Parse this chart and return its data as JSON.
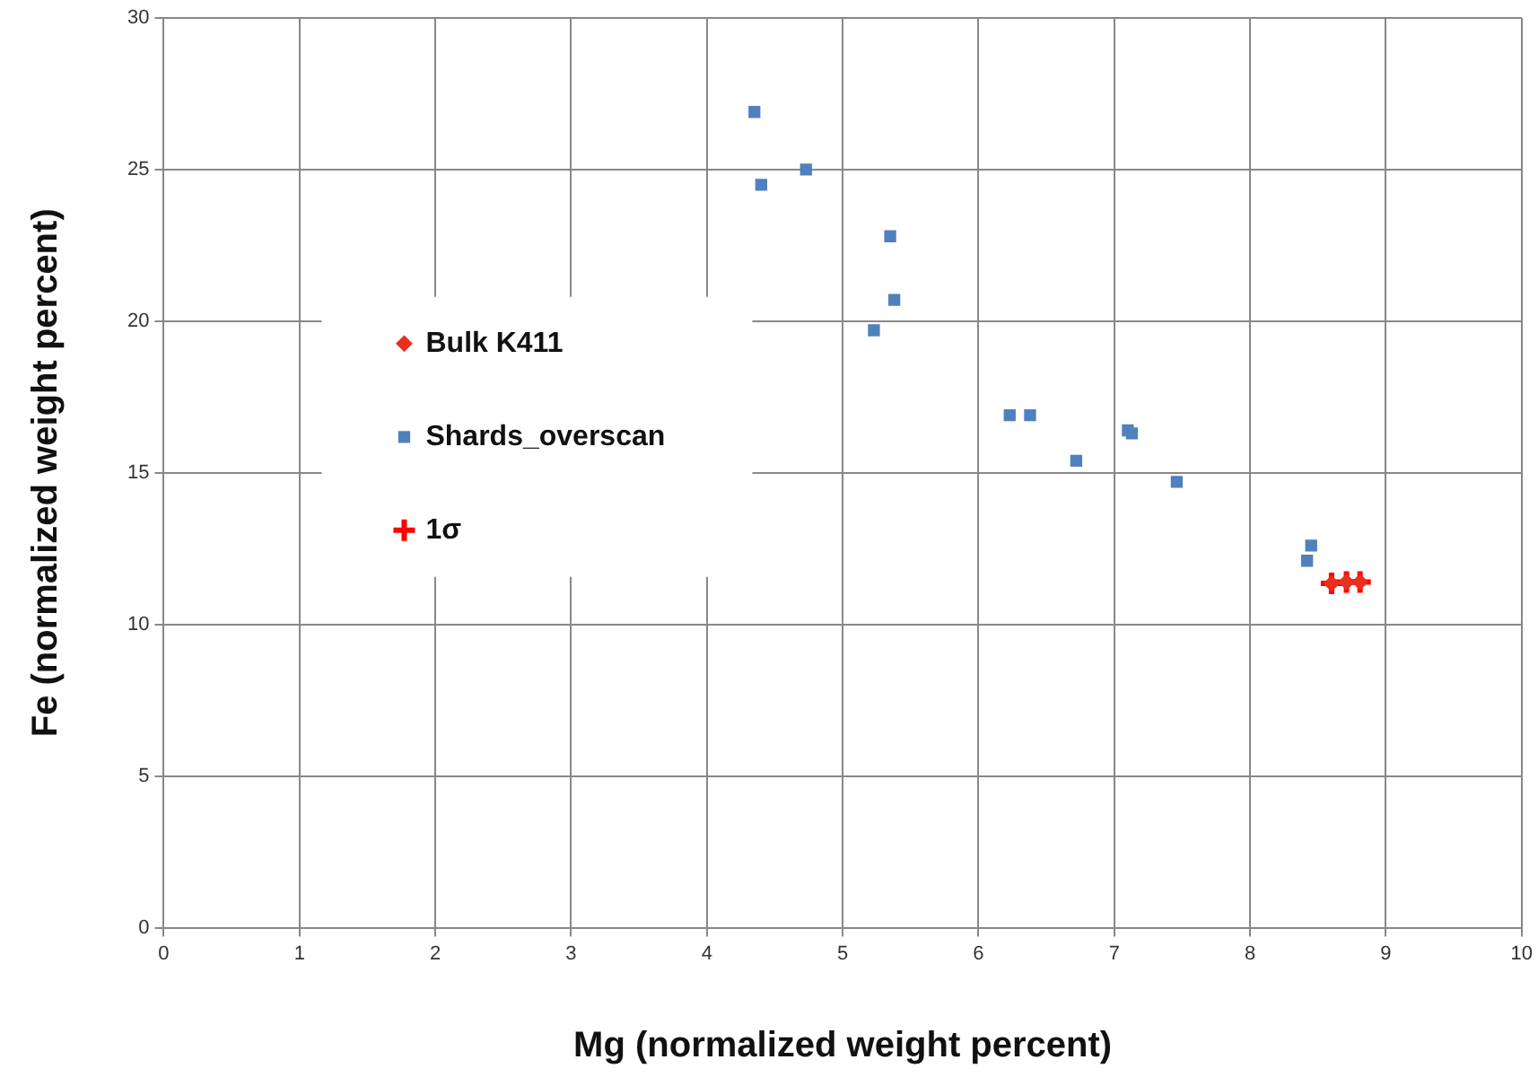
{
  "chart_data": {
    "type": "scatter",
    "xlabel": "Mg (normalized weight percent)",
    "ylabel": "Fe (normalized weight percent)",
    "xlim": [
      0,
      10
    ],
    "xticks": [
      0,
      1,
      2,
      3,
      4,
      5,
      6,
      7,
      8,
      9,
      10
    ],
    "ylim": [
      0,
      30
    ],
    "yticks": [
      0,
      5,
      10,
      15,
      20,
      25,
      30
    ],
    "grid": true,
    "legend": "left",
    "series": [
      {
        "name": "Bulk K411",
        "color": "#e8301c",
        "marker": "diamond",
        "x": [
          8.6,
          8.71,
          8.81
        ],
        "values": [
          11.35,
          11.4,
          11.4
        ]
      },
      {
        "name": "Shards_overscan",
        "color": "#4f81bd",
        "marker": "square",
        "x": [
          4.35,
          4.4,
          4.73,
          5.35,
          5.38,
          5.23,
          6.23,
          6.38,
          6.72,
          7.1,
          7.13,
          7.46,
          8.45,
          8.42
        ],
        "values": [
          26.9,
          24.5,
          25.0,
          22.8,
          20.7,
          19.7,
          16.9,
          16.9,
          15.4,
          16.4,
          16.3,
          14.7,
          12.6,
          12.1
        ]
      },
      {
        "name": "1σ",
        "color": "#ff0000",
        "marker": "cross",
        "x": [
          8.6,
          8.71,
          8.81
        ],
        "values": [
          11.35,
          11.4,
          11.4
        ]
      }
    ]
  }
}
